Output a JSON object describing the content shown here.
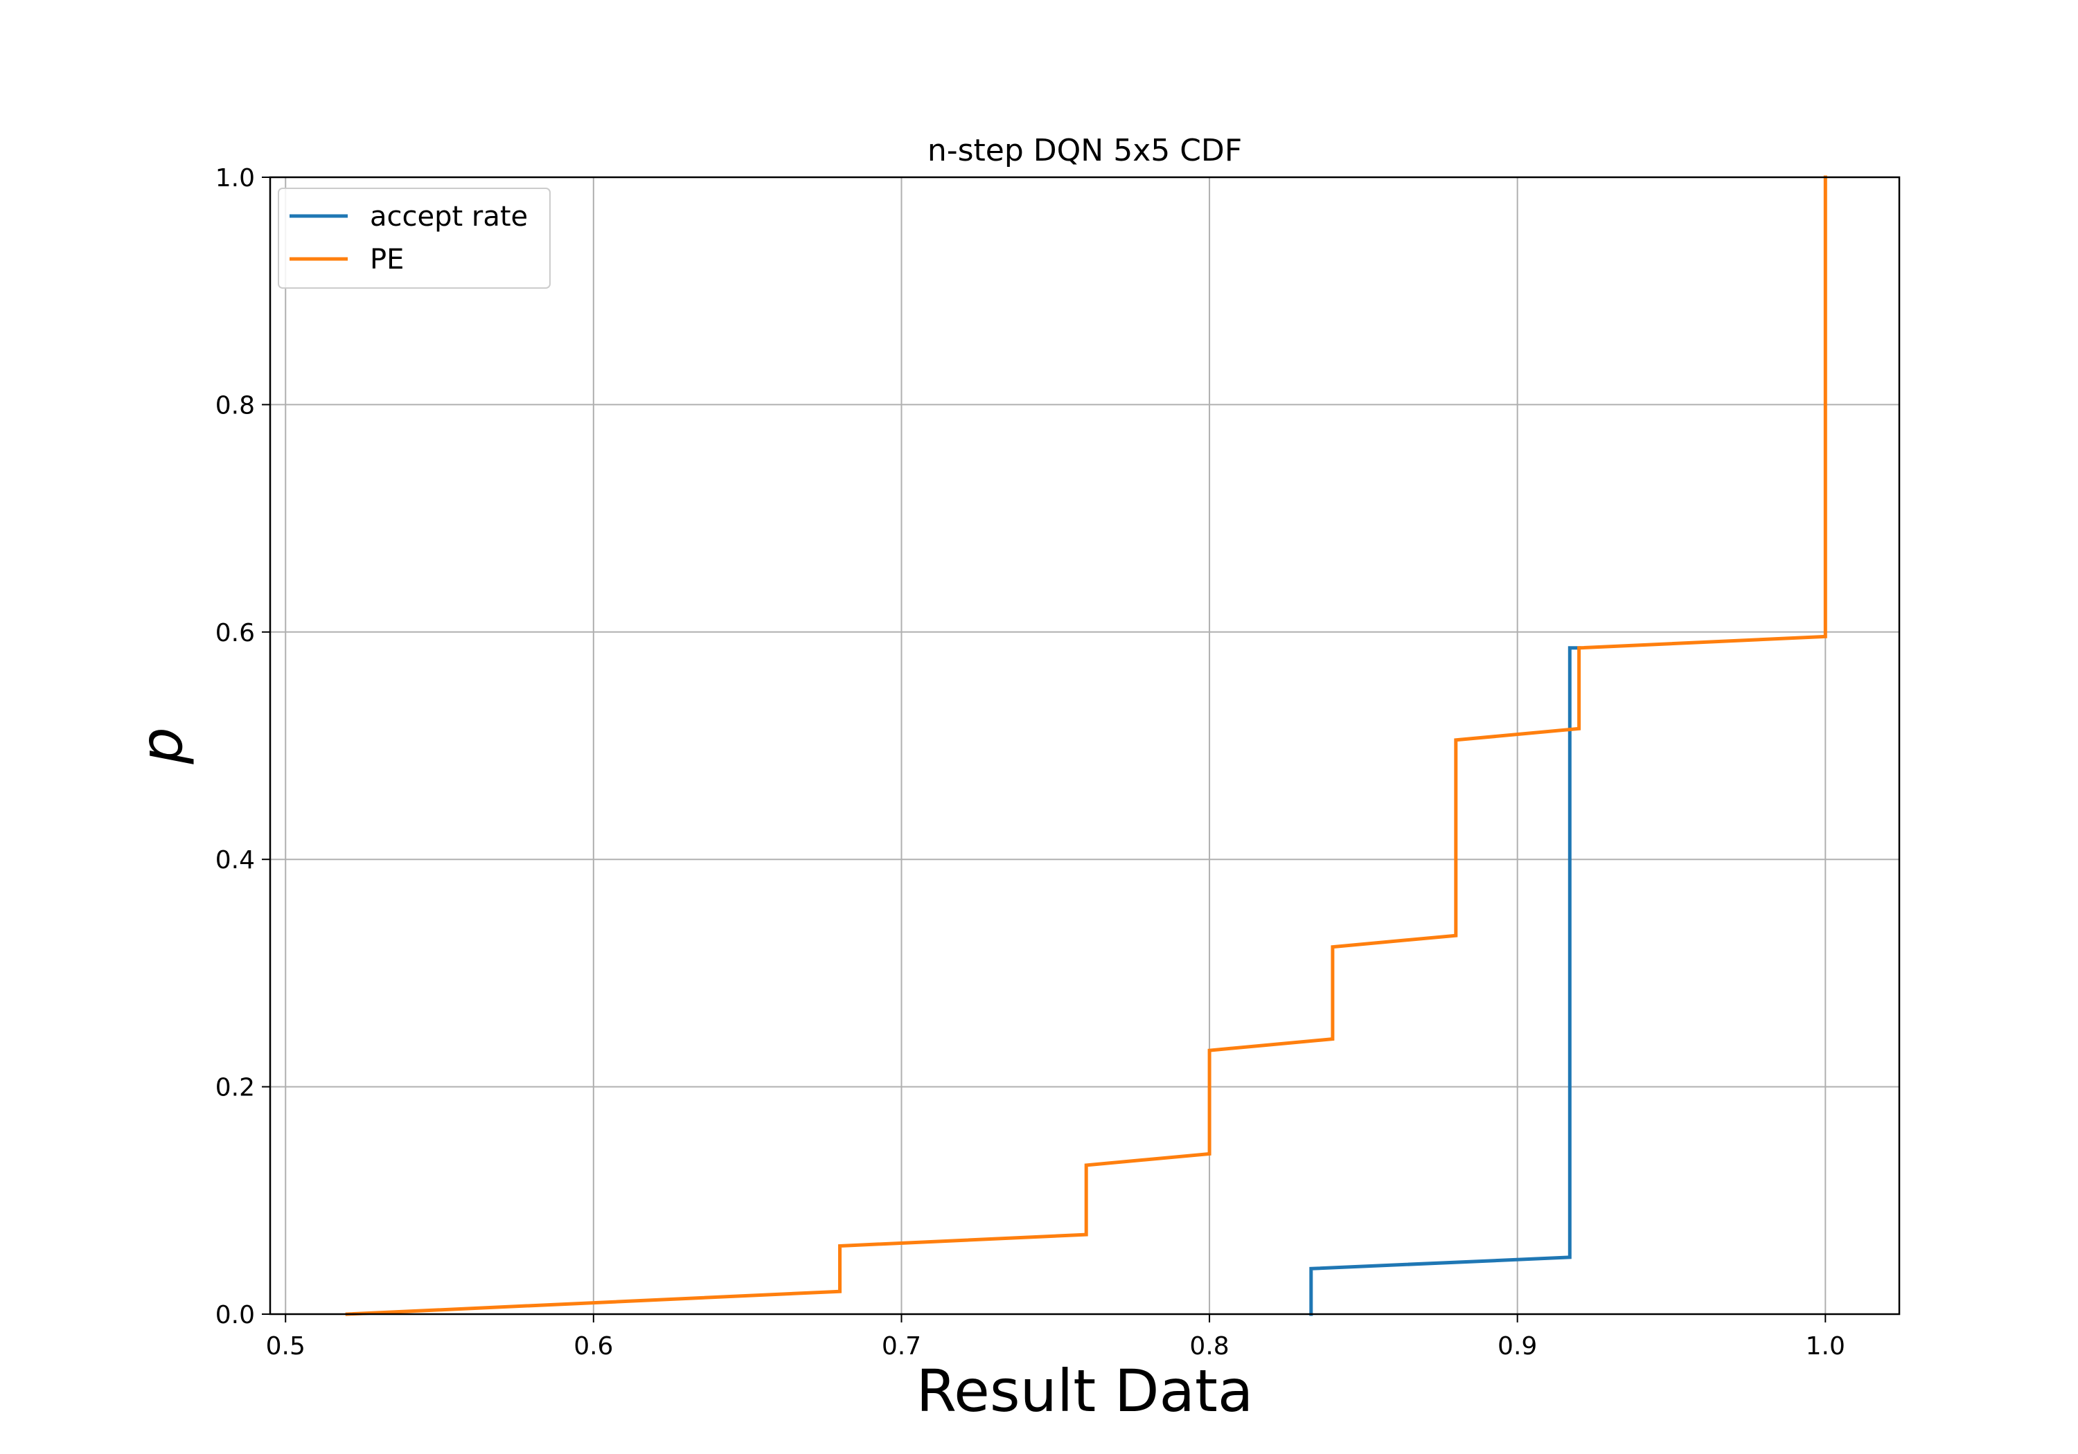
{
  "chart_data": {
    "type": "line",
    "title": "n-step DQN 5x5 CDF",
    "xlabel": "Result Data",
    "ylabel": "p",
    "xlim": [
      0.495,
      1.024
    ],
    "ylim": [
      0.0,
      1.0
    ],
    "grid": true,
    "legend_position": "top-left",
    "x_ticks": [
      0.5,
      0.6,
      0.7,
      0.8,
      0.9,
      1.0
    ],
    "x_tick_labels": [
      "0.5",
      "0.6",
      "0.7",
      "0.8",
      "0.9",
      "1.0"
    ],
    "y_ticks": [
      0.0,
      0.2,
      0.4,
      0.6,
      0.8,
      1.0
    ],
    "y_tick_labels": [
      "0.0",
      "0.2",
      "0.4",
      "0.6",
      "0.8",
      "1.0"
    ],
    "series": [
      {
        "name": "accept rate",
        "color": "#1f77b4",
        "points": [
          [
            0.833,
            0.0
          ],
          [
            0.833,
            0.04
          ],
          [
            0.917,
            0.05
          ],
          [
            0.917,
            0.586
          ],
          [
            0.92,
            0.586
          ]
        ]
      },
      {
        "name": "PE",
        "color": "#ff7f0e",
        "points": [
          [
            0.52,
            0.0
          ],
          [
            0.68,
            0.02
          ],
          [
            0.68,
            0.06
          ],
          [
            0.76,
            0.07
          ],
          [
            0.76,
            0.131
          ],
          [
            0.8,
            0.141
          ],
          [
            0.8,
            0.232
          ],
          [
            0.84,
            0.242
          ],
          [
            0.84,
            0.323
          ],
          [
            0.88,
            0.333
          ],
          [
            0.88,
            0.505
          ],
          [
            0.92,
            0.515
          ],
          [
            0.92,
            0.586
          ],
          [
            1.0,
            0.596
          ],
          [
            1.0,
            1.0
          ]
        ]
      }
    ]
  }
}
